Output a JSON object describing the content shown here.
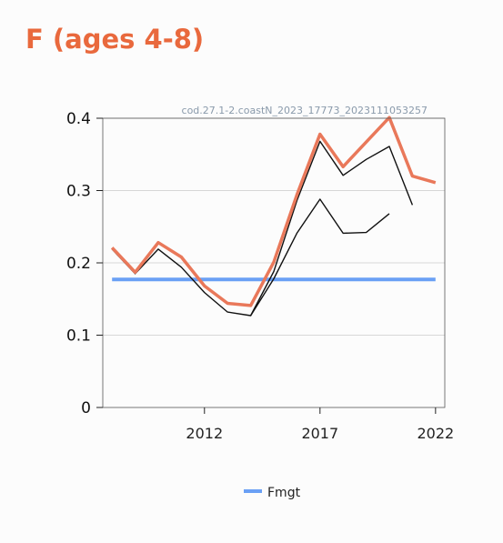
{
  "title": "F (ages 4-8)",
  "colors": {
    "title": "#e9693d",
    "fmgt": "#6aa0f5",
    "highlight": "#e9785a",
    "others": "#111111",
    "grid": "#d7d7d7",
    "axis": "#222222",
    "caption": "#8a9aab"
  },
  "chart_data": {
    "type": "line",
    "caption": "cod.27.1-2.coastN_2023_17773_2023111053257",
    "xlim": [
      2007.6,
      2022.4
    ],
    "ylim": [
      0,
      0.4
    ],
    "xticks": [
      2012,
      2017,
      2022
    ],
    "yticks": [
      0,
      0.1,
      0.2,
      0.3,
      0.4
    ],
    "ytick_labels": [
      "0",
      "0.1",
      "0.2",
      "0.3",
      "0.4"
    ],
    "grid": true,
    "legend_position": "bottom",
    "series": [
      {
        "name": "Fmgt",
        "style": "fmgt",
        "x": [
          2008,
          2022
        ],
        "y": [
          0.177,
          0.177
        ]
      },
      {
        "style": "highlight",
        "x": [
          2008,
          2009,
          2010,
          2011,
          2012,
          2013,
          2014,
          2015,
          2016,
          2017,
          2018,
          2019,
          2020,
          2021,
          2022
        ],
        "y": [
          0.221,
          0.187,
          0.228,
          0.208,
          0.168,
          0.144,
          0.141,
          0.201,
          0.294,
          0.378,
          0.333,
          0.367,
          0.401,
          0.32,
          0.311
        ]
      },
      {
        "style": "other",
        "x": [
          2008,
          2009,
          2010,
          2011,
          2012,
          2013,
          2014,
          2015,
          2016,
          2017,
          2018,
          2019,
          2020,
          2021
        ],
        "y": [
          0.219,
          0.185,
          0.219,
          0.194,
          0.159,
          0.132,
          0.127,
          0.188,
          0.286,
          0.368,
          0.321,
          0.343,
          0.361,
          0.28
        ]
      },
      {
        "style": "other",
        "x": [
          2014,
          2015,
          2016,
          2017,
          2018,
          2019,
          2020
        ],
        "y": [
          0.127,
          0.178,
          0.241,
          0.288,
          0.241,
          0.242,
          0.268
        ]
      }
    ],
    "legend": [
      {
        "label": "Fmgt",
        "style": "fmgt"
      }
    ]
  }
}
